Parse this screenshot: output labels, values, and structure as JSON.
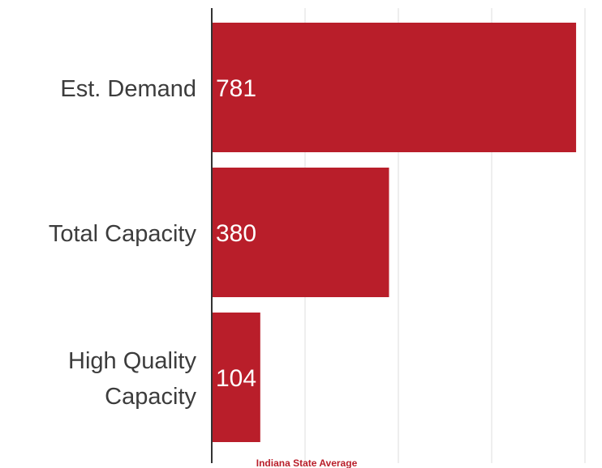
{
  "chart_data": {
    "type": "bar",
    "orientation": "horizontal",
    "categories": [
      {
        "lines": [
          "Est. Demand"
        ]
      },
      {
        "lines": [
          "Total Capacity"
        ]
      },
      {
        "lines": [
          "High Quality",
          "Capacity"
        ]
      }
    ],
    "values": [
      781,
      380,
      104
    ],
    "data_labels": [
      "781",
      "380",
      "104"
    ],
    "caption": "Indiana State Average",
    "xlim": [
      0,
      800
    ],
    "grid_step": 200,
    "grid": true,
    "legend": "none",
    "colors": {
      "bar": "#b91e2a",
      "data_label": "#ffffff",
      "category_label": "#3c3c3c",
      "caption": "#b91e2a",
      "axis": "#333333",
      "grid": "#dedede"
    }
  }
}
